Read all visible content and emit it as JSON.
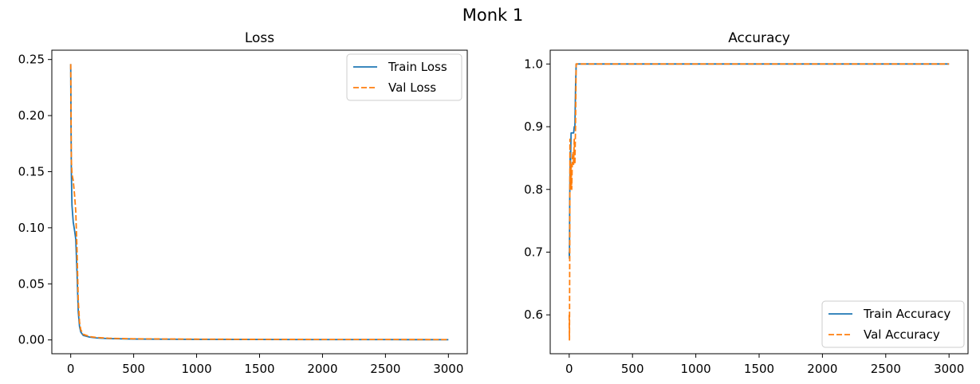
{
  "suptitle": "Monk 1",
  "chart_data": [
    {
      "type": "line",
      "title": "Loss",
      "xlabel": "",
      "ylabel": "",
      "xlim": [
        -150,
        3150
      ],
      "ylim": [
        -0.0123,
        0.2583
      ],
      "xticks": [
        0,
        500,
        1000,
        1500,
        2000,
        2500,
        3000
      ],
      "xtick_labels": [
        "0",
        "500",
        "1000",
        "1500",
        "2000",
        "2500",
        "3000"
      ],
      "yticks": [
        0.0,
        0.05,
        0.1,
        0.15,
        0.2,
        0.25
      ],
      "ytick_labels": [
        "0.00",
        "0.05",
        "0.10",
        "0.15",
        "0.20",
        "0.25"
      ],
      "grid": false,
      "legend": {
        "placement": "top-right"
      },
      "series": [
        {
          "name": "Train Loss",
          "color": "#1f77b4",
          "dash": "solid",
          "x": [
            0,
            2,
            5,
            10,
            20,
            30,
            40,
            50,
            60,
            70,
            80,
            100,
            150,
            200,
            300,
            500,
            1000,
            1500,
            2000,
            2500,
            3000
          ],
          "y": [
            0.246,
            0.2,
            0.15,
            0.12,
            0.105,
            0.098,
            0.09,
            0.06,
            0.025,
            0.012,
            0.007,
            0.004,
            0.0025,
            0.0018,
            0.0012,
            0.0008,
            0.0005,
            0.0004,
            0.0003,
            0.0003,
            0.0002
          ]
        },
        {
          "name": "Val Loss",
          "color": "#ff7f0e",
          "dash": "dashed",
          "x": [
            0,
            2,
            5,
            10,
            20,
            30,
            40,
            50,
            60,
            70,
            80,
            100,
            150,
            200,
            300,
            500,
            1000,
            1500,
            2000,
            2500,
            3000
          ],
          "y": [
            0.246,
            0.21,
            0.16,
            0.148,
            0.142,
            0.13,
            0.115,
            0.08,
            0.035,
            0.016,
            0.009,
            0.005,
            0.003,
            0.0022,
            0.0015,
            0.001,
            0.0007,
            0.0005,
            0.0004,
            0.0004,
            0.0003
          ]
        }
      ]
    },
    {
      "type": "line",
      "title": "Accuracy",
      "xlabel": "",
      "ylabel": "",
      "xlim": [
        -150,
        3150
      ],
      "ylim": [
        0.538,
        1.022
      ],
      "xticks": [
        0,
        500,
        1000,
        1500,
        2000,
        2500,
        3000
      ],
      "xtick_labels": [
        "0",
        "500",
        "1000",
        "1500",
        "2000",
        "2500",
        "3000"
      ],
      "yticks": [
        0.6,
        0.7,
        0.8,
        0.9,
        1.0
      ],
      "ytick_labels": [
        "0.6",
        "0.7",
        "0.8",
        "0.9",
        "1.0"
      ],
      "grid": false,
      "legend": {
        "placement": "bottom-right"
      },
      "series": [
        {
          "name": "Train Accuracy",
          "color": "#1f77b4",
          "dash": "solid",
          "x": [
            0,
            2,
            4,
            6,
            8,
            10,
            12,
            15,
            20,
            25,
            30,
            35,
            40,
            45,
            50,
            55,
            60,
            3000
          ],
          "y": [
            0.7,
            0.69,
            0.78,
            0.82,
            0.86,
            0.84,
            0.86,
            0.89,
            0.89,
            0.89,
            0.89,
            0.89,
            0.9,
            0.9,
            0.96,
            1.0,
            1.0,
            1.0
          ]
        },
        {
          "name": "Val Accuracy",
          "color": "#ff7f0e",
          "dash": "dashed",
          "x": [
            0,
            2,
            4,
            6,
            8,
            10,
            12,
            15,
            20,
            25,
            30,
            35,
            40,
            45,
            50,
            55,
            60,
            3000
          ],
          "y": [
            0.6,
            0.56,
            0.68,
            0.88,
            0.8,
            0.84,
            0.8,
            0.84,
            0.8,
            0.85,
            0.86,
            0.84,
            0.88,
            0.84,
            0.9,
            1.0,
            1.0,
            1.0
          ]
        }
      ]
    }
  ]
}
